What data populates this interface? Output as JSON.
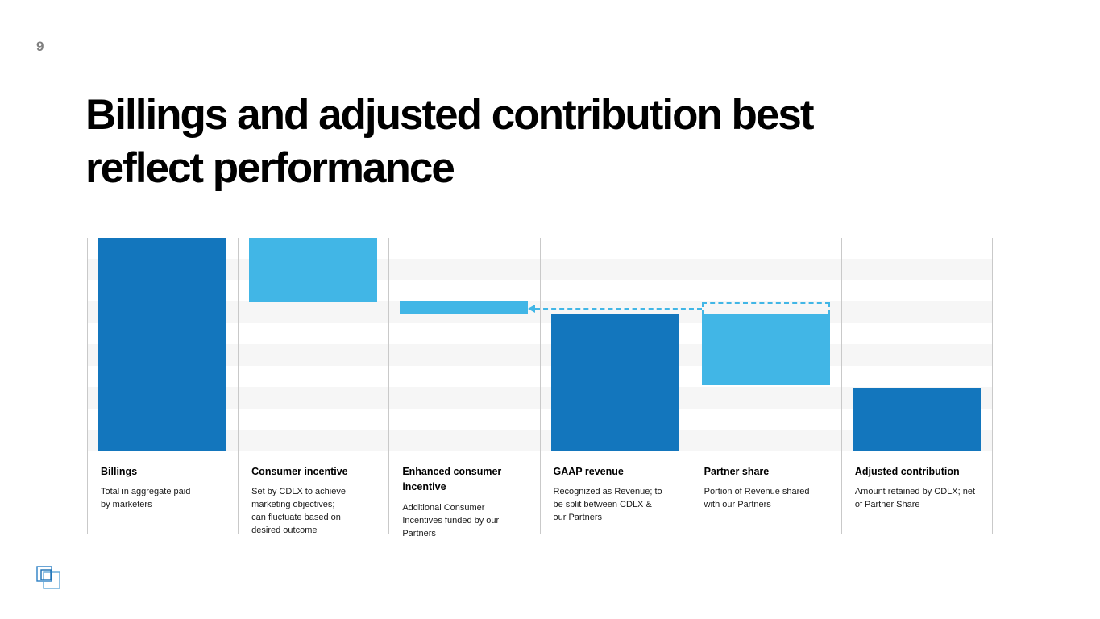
{
  "page": {
    "number": "9",
    "title_lines": [
      "Billings and adjusted contribution best",
      "reflect performance"
    ]
  },
  "colors": {
    "dark_blue": "#1376bd",
    "light_blue": "#41b6e6",
    "stripe_gray": "#f6f6f6",
    "separator_gray": "#c9c9c9",
    "page_number_gray": "#7f7f7f",
    "arrow_blue": "#41b6e6"
  },
  "chart_data": {
    "type": "bar",
    "subtype": "waterfall",
    "title": "",
    "value_scale": "percent_of_chart_height (no numeric axis shown)",
    "gridlines": "alternating horizontal stripe bands, 10 bands, no tick labels",
    "legend": "none",
    "columns": [
      {
        "id": "billings",
        "label": "Billings",
        "description_lines": [
          "Total in aggregate paid",
          "by marketers"
        ],
        "bar": {
          "color": "dark_blue",
          "top_pct": 0,
          "height_pct": 100
        }
      },
      {
        "id": "consumer-incentive",
        "label": "Consumer incentive",
        "description_lines": [
          "Set by CDLX to achieve",
          "marketing objectives;",
          "can fluctuate based on",
          "desired outcome"
        ],
        "bar": {
          "color": "light_blue",
          "top_pct": 0,
          "height_pct": 30.2
        }
      },
      {
        "id": "enhanced-consumer-incentive",
        "label_lines": [
          "Enhanced consumer",
          "incentive"
        ],
        "label": "Enhanced consumer incentive",
        "description_lines": [
          "Additional Consumer",
          "Incentives funded by our",
          "Partners"
        ],
        "bar": {
          "color": "light_blue",
          "top_pct": 29.9,
          "height_pct": 5.7
        }
      },
      {
        "id": "gaap-revenue",
        "label": "GAAP revenue",
        "description_lines": [
          "Recognized as Revenue; to",
          "be split between CDLX &",
          "our Partners"
        ],
        "bar": {
          "color": "dark_blue",
          "top_pct": 35.9,
          "height_pct": 64.1
        }
      },
      {
        "id": "partner-share",
        "label": "Partner share",
        "description_lines": [
          "Portion of Revenue shared",
          "with our Partners"
        ],
        "bar": {
          "color": "light_blue",
          "top_pct": 35.5,
          "height_pct": 33.6
        },
        "dashed_cap": {
          "top_pct": 30.2,
          "height_pct": 5.3
        }
      },
      {
        "id": "adjusted-contribution",
        "label": "Adjusted contribution",
        "description_lines": [
          "Amount retained by CDLX; net",
          "of Partner Share"
        ],
        "bar": {
          "color": "dark_blue",
          "top_pct": 70.3,
          "height_pct": 29.7
        }
      }
    ],
    "annotation_arrow": {
      "style": "horizontal dashed light-blue line, arrowhead pointing left",
      "from": "partner-share dashed cap",
      "to": "enhanced-consumer-incentive bar right edge"
    }
  },
  "logo": {
    "name": "cardlytics-logo",
    "square_strokes": [
      "#2c7fc4",
      "#62a9d8",
      "#1b6fb4"
    ]
  }
}
